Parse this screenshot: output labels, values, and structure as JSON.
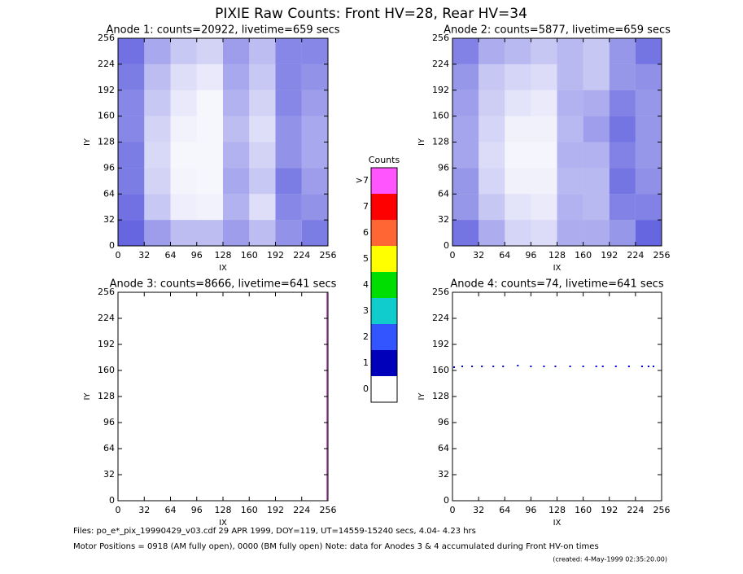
{
  "title": "PIXIE Raw Counts:  Front HV=28, Rear HV=34",
  "chart_data": [
    {
      "type": "heatmap",
      "title": "Anode 1: counts=20922, livetime=659 secs",
      "xlabel": "IX",
      "ylabel": "IY",
      "xlim": [
        0,
        256
      ],
      "ylim": [
        0,
        256
      ],
      "xticks": [
        0,
        32,
        64,
        96,
        128,
        160,
        192,
        224,
        256
      ],
      "yticks": [
        0,
        32,
        64,
        96,
        128,
        160,
        192,
        224,
        256
      ],
      "xbins": [
        0,
        32,
        64,
        96,
        128,
        160,
        192,
        224,
        256
      ],
      "ybins": [
        0,
        32,
        64,
        96,
        128,
        160,
        192,
        224,
        256
      ],
      "color": "#0000cc",
      "z": [
        [
          700,
          450,
          300,
          300,
          450,
          300,
          500,
          600
        ],
        [
          650,
          250,
          80,
          60,
          350,
          150,
          550,
          500
        ],
        [
          600,
          200,
          50,
          40,
          400,
          250,
          600,
          450
        ],
        [
          600,
          180,
          40,
          40,
          350,
          200,
          500,
          400
        ],
        [
          550,
          200,
          60,
          40,
          300,
          150,
          500,
          400
        ],
        [
          550,
          250,
          100,
          40,
          350,
          200,
          550,
          450
        ],
        [
          600,
          300,
          150,
          100,
          400,
          250,
          550,
          500
        ],
        [
          650,
          400,
          250,
          200,
          450,
          300,
          550,
          550
        ]
      ]
    },
    {
      "type": "heatmap",
      "title": "Anode 2: counts=5877, livetime=659 secs",
      "xlabel": "IX",
      "ylabel": "IY",
      "xlim": [
        0,
        256
      ],
      "ylim": [
        0,
        256
      ],
      "xticks": [
        0,
        32,
        64,
        96,
        128,
        160,
        192,
        224,
        256
      ],
      "yticks": [
        0,
        32,
        64,
        96,
        128,
        160,
        192,
        224,
        256
      ],
      "xbins": [
        0,
        32,
        64,
        96,
        128,
        160,
        192,
        224,
        256
      ],
      "ybins": [
        0,
        32,
        64,
        96,
        128,
        160,
        192,
        224,
        256
      ],
      "color": "#0000cc",
      "z": [
        [
          200,
          120,
          60,
          50,
          120,
          120,
          150,
          220
        ],
        [
          150,
          80,
          40,
          30,
          110,
          100,
          180,
          180
        ],
        [
          150,
          60,
          20,
          20,
          100,
          100,
          200,
          160
        ],
        [
          130,
          50,
          15,
          15,
          110,
          110,
          180,
          150
        ],
        [
          130,
          60,
          20,
          20,
          100,
          140,
          200,
          150
        ],
        [
          140,
          70,
          40,
          30,
          110,
          120,
          180,
          150
        ],
        [
          150,
          80,
          60,
          50,
          100,
          80,
          150,
          160
        ],
        [
          180,
          120,
          100,
          80,
          100,
          80,
          150,
          200
        ]
      ]
    },
    {
      "type": "line",
      "title": "Anode 3: counts=8666, livetime=641 secs",
      "xlabel": "IX",
      "ylabel": "IY",
      "xlim": [
        0,
        256
      ],
      "ylim": [
        0,
        256
      ],
      "xticks": [
        0,
        32,
        64,
        96,
        128,
        160,
        192,
        224,
        256
      ],
      "yticks": [
        0,
        32,
        64,
        96,
        128,
        160,
        192,
        224,
        256
      ],
      "color": "#cc66cc",
      "x": [
        255,
        255
      ],
      "y": [
        0,
        256
      ]
    },
    {
      "type": "scatter",
      "title": "Anode 4: counts=74, livetime=641 secs",
      "xlabel": "IX",
      "ylabel": "IY",
      "xlim": [
        0,
        256
      ],
      "ylim": [
        0,
        256
      ],
      "xticks": [
        0,
        32,
        64,
        96,
        128,
        160,
        192,
        224,
        256
      ],
      "yticks": [
        0,
        32,
        64,
        96,
        128,
        160,
        192,
        224,
        256
      ],
      "color": "#0000cc",
      "x": [
        2,
        12,
        24,
        36,
        50,
        62,
        80,
        96,
        112,
        126,
        144,
        160,
        176,
        184,
        200,
        216,
        232,
        240,
        246
      ],
      "y": [
        164,
        165,
        165,
        165,
        165,
        165,
        166,
        165,
        165,
        165,
        165,
        165,
        165,
        165,
        165,
        165,
        165,
        165,
        165
      ]
    }
  ],
  "colorbar": {
    "title": "Counts",
    "labels": [
      ">7",
      "7",
      "6",
      "5",
      "4",
      "3",
      "2",
      "1",
      "0"
    ],
    "colors": [
      "#ff55ff",
      "#ff0000",
      "#ff6633",
      "#ffff00",
      "#00dd00",
      "#11cccc",
      "#3355ff",
      "#0000bb",
      "#ffffff"
    ]
  },
  "footer": [
    "Files: po_e*_pix_19990429_v03.cdf    29 APR 1999, DOY=119, UT=14559-15240 secs,  4.04- 4.23 hrs",
    "Motor Positions = 0918 (AM fully open), 0000 (BM fully open)    Note: data for Anodes 3 & 4 accumulated during Front HV-on times",
    "(created:  4-May-1999 02:35:20.00)"
  ]
}
